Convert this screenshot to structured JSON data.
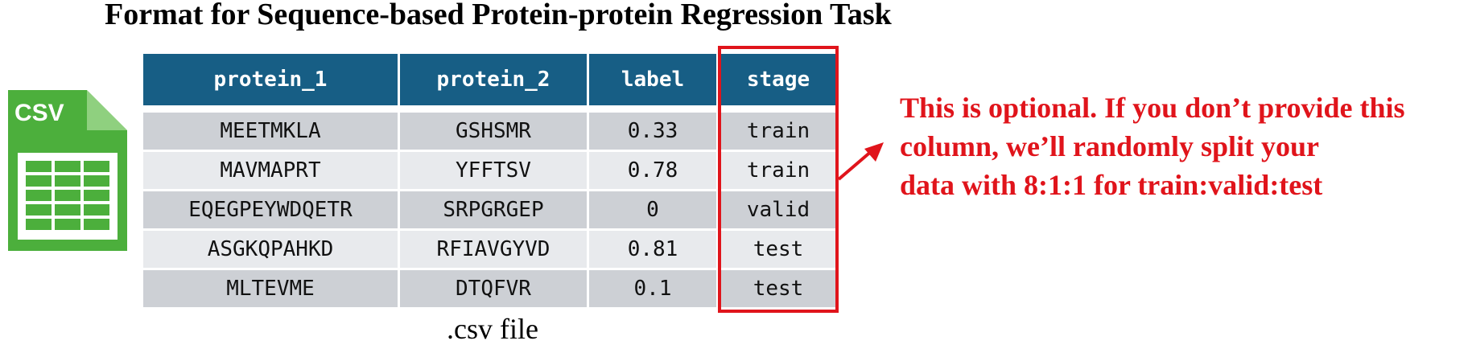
{
  "title": "Format for Sequence-based Protein-protein Regression Task",
  "csv_icon": {
    "label": "CSV",
    "icon_name": "csv-file-icon",
    "color": "#4caf3c"
  },
  "table": {
    "headers": [
      "protein_1",
      "protein_2",
      "label",
      "stage"
    ],
    "rows": [
      [
        "MEETMKLA",
        "GSHSMR",
        "0.33",
        "train"
      ],
      [
        "MAVMAPRT",
        "YFFTSV",
        "0.78",
        "train"
      ],
      [
        "EQEGPEYWDQETR",
        "SRPGRGEP",
        "0",
        "valid"
      ],
      [
        "ASGKQPAHKD",
        "RFIAVGYVD",
        "0.81",
        "test"
      ],
      [
        "MLTEVME",
        "DTQFVR",
        "0.1",
        "test"
      ]
    ],
    "header_color": "#175e85",
    "row_colors": [
      "#cdd0d5",
      "#e8eaed"
    ]
  },
  "caption": ".csv file",
  "note": {
    "lines": [
      "This is optional. If you don’t provide this",
      "column, we’ll randomly split your",
      "data with 8:1:1 for train:valid:test"
    ],
    "color": "#e0141b"
  }
}
